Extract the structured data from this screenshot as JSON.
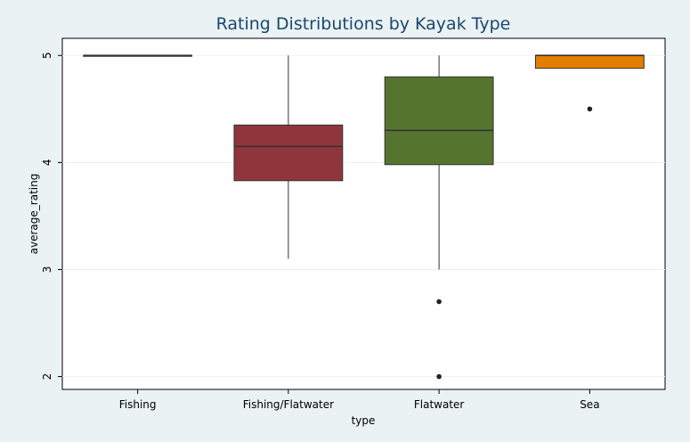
{
  "chart_data": {
    "type": "box",
    "title": "Rating Distributions by Kayak Type",
    "xlabel": "type",
    "ylabel": "average_rating",
    "categories": [
      "Fishing",
      "Fishing/Flatwater",
      "Flatwater",
      "Sea"
    ],
    "ylim": [
      1.88,
      5.16
    ],
    "yticks": [
      2,
      3,
      4,
      5
    ],
    "grid": true,
    "legend": "none",
    "boxes": [
      {
        "category": "Fishing",
        "min": 5.0,
        "q1": 5.0,
        "median": 5.0,
        "q3": 5.0,
        "max": 5.0,
        "outliers": [],
        "color": "#1a476f"
      },
      {
        "category": "Fishing/Flatwater",
        "min": 3.1,
        "q1": 3.83,
        "median": 4.15,
        "q3": 4.35,
        "max": 5.0,
        "outliers": [],
        "color": "#90353b"
      },
      {
        "category": "Flatwater",
        "min": 3.0,
        "q1": 3.98,
        "median": 4.3,
        "q3": 4.8,
        "max": 5.0,
        "outliers": [
          2.7,
          2.0
        ],
        "color": "#55752f"
      },
      {
        "category": "Sea",
        "min": 4.88,
        "q1": 4.88,
        "median": 5.0,
        "q3": 5.0,
        "max": 5.0,
        "outliers": [
          4.5
        ],
        "color": "#e37e00"
      }
    ]
  }
}
